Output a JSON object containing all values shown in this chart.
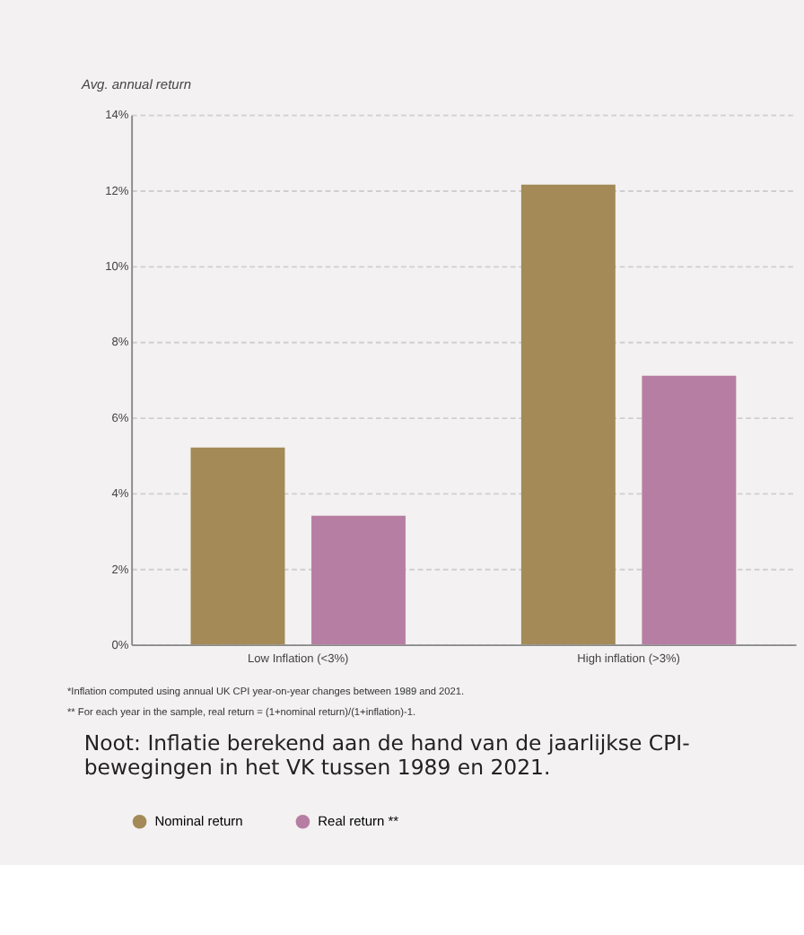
{
  "chart_data": {
    "type": "bar",
    "ylabel": "Avg. annual return",
    "categories": [
      "Low Inflation (<3%)",
      "High inflation (>3%)"
    ],
    "series": [
      {
        "name": "Nominal return",
        "color": "#a38a57",
        "values": [
          5.2,
          12.15
        ]
      },
      {
        "name": "Real return **",
        "color": "#b77ea4",
        "values": [
          3.4,
          7.1
        ]
      }
    ],
    "ylim": [
      0,
      14
    ],
    "yticks": [
      {
        "value": 0,
        "label": "0%"
      },
      {
        "value": 2,
        "label": "2%"
      },
      {
        "value": 4,
        "label": "4%"
      },
      {
        "value": 6,
        "label": "6%"
      },
      {
        "value": 8,
        "label": "8%"
      },
      {
        "value": 10,
        "label": "10%"
      },
      {
        "value": 12,
        "label": "12%"
      },
      {
        "value": 14,
        "label": "14%"
      }
    ],
    "grid": "y",
    "legend": "bottom left",
    "annotations": [
      "*Inflation computed using annual UK CPI year-on-year changes between 1989 and 2021.",
      "** For each year in the sample, real return = (1+nominal return)/(1+inflation)-1.",
      "Noot: Inflatie berekend aan de hand van de jaarlijkse CPI-bewegingen in het VK tussen 1989 en 2021."
    ]
  }
}
